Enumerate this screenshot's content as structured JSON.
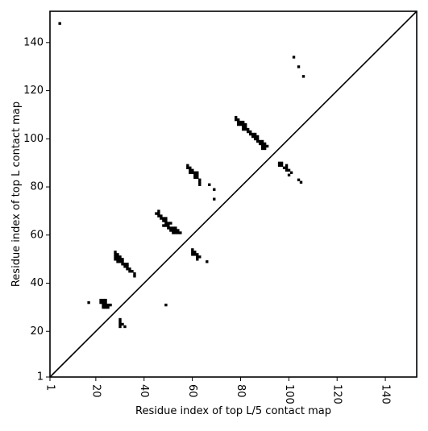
{
  "chart_data": {
    "type": "scatter",
    "title": "",
    "xlabel": "Residue index of top L/5 contact map",
    "ylabel": "Residue index of top L contact map",
    "xlim": [
      1,
      153
    ],
    "ylim": [
      1,
      153
    ],
    "xticks": [
      1,
      20,
      40,
      60,
      80,
      100,
      120,
      140
    ],
    "yticks": [
      1,
      20,
      40,
      60,
      80,
      100,
      120,
      140
    ],
    "grid": false,
    "diagonal_line": true,
    "marker": "square",
    "marker_color": "#000000",
    "upper_triangle_contacts": [
      [
        5,
        148
      ],
      [
        28,
        53
      ],
      [
        28,
        52
      ],
      [
        28,
        51
      ],
      [
        28,
        50
      ],
      [
        29,
        52
      ],
      [
        29,
        51
      ],
      [
        29,
        50
      ],
      [
        29,
        49
      ],
      [
        30,
        51
      ],
      [
        30,
        50
      ],
      [
        30,
        49
      ],
      [
        31,
        50
      ],
      [
        31,
        49
      ],
      [
        31,
        48
      ],
      [
        32,
        48
      ],
      [
        32,
        47
      ],
      [
        33,
        48
      ],
      [
        33,
        47
      ],
      [
        33,
        46
      ],
      [
        34,
        46
      ],
      [
        34,
        45
      ],
      [
        35,
        45
      ],
      [
        36,
        44
      ],
      [
        36,
        43
      ],
      [
        45,
        69
      ],
      [
        46,
        70
      ],
      [
        46,
        69
      ],
      [
        46,
        68
      ],
      [
        47,
        68
      ],
      [
        47,
        67
      ],
      [
        48,
        67
      ],
      [
        48,
        66
      ],
      [
        48,
        64
      ],
      [
        49,
        67
      ],
      [
        49,
        66
      ],
      [
        49,
        65
      ],
      [
        49,
        64
      ],
      [
        50,
        65
      ],
      [
        50,
        64
      ],
      [
        50,
        63
      ],
      [
        51,
        65
      ],
      [
        51,
        63
      ],
      [
        51,
        62
      ],
      [
        52,
        63
      ],
      [
        52,
        62
      ],
      [
        52,
        61
      ],
      [
        53,
        63
      ],
      [
        53,
        62
      ],
      [
        53,
        61
      ],
      [
        54,
        62
      ],
      [
        54,
        61
      ],
      [
        55,
        61
      ],
      [
        58,
        89
      ],
      [
        58,
        88
      ],
      [
        59,
        88
      ],
      [
        59,
        87
      ],
      [
        59,
        86
      ],
      [
        60,
        87
      ],
      [
        60,
        86
      ],
      [
        61,
        86
      ],
      [
        61,
        85
      ],
      [
        61,
        84
      ],
      [
        62,
        86
      ],
      [
        62,
        85
      ],
      [
        62,
        84
      ],
      [
        63,
        83
      ],
      [
        63,
        82
      ],
      [
        63,
        81
      ],
      [
        67,
        81
      ],
      [
        69,
        79
      ],
      [
        69,
        75
      ],
      [
        60,
        54
      ],
      [
        60,
        53
      ],
      [
        60,
        52
      ],
      [
        61,
        53
      ],
      [
        61,
        52
      ],
      [
        62,
        52
      ],
      [
        62,
        51
      ],
      [
        62,
        50
      ],
      [
        63,
        51
      ],
      [
        66,
        49
      ],
      [
        78,
        109
      ],
      [
        78,
        108
      ],
      [
        79,
        108
      ],
      [
        79,
        107
      ],
      [
        79,
        106
      ],
      [
        80,
        107
      ],
      [
        80,
        106
      ],
      [
        81,
        107
      ],
      [
        81,
        106
      ],
      [
        81,
        105
      ],
      [
        81,
        104
      ],
      [
        82,
        106
      ],
      [
        82,
        105
      ],
      [
        82,
        104
      ],
      [
        83,
        104
      ],
      [
        83,
        103
      ],
      [
        84,
        103
      ],
      [
        84,
        102
      ],
      [
        85,
        102
      ],
      [
        85,
        101
      ],
      [
        86,
        102
      ],
      [
        86,
        101
      ],
      [
        86,
        100
      ],
      [
        87,
        101
      ],
      [
        87,
        100
      ],
      [
        87,
        99
      ],
      [
        88,
        99
      ],
      [
        88,
        98
      ],
      [
        89,
        99
      ],
      [
        89,
        98
      ],
      [
        89,
        97
      ],
      [
        89,
        96
      ],
      [
        90,
        98
      ],
      [
        90,
        97
      ],
      [
        90,
        96
      ],
      [
        91,
        97
      ],
      [
        96,
        90
      ],
      [
        96,
        89
      ],
      [
        97,
        90
      ],
      [
        97,
        89
      ],
      [
        98,
        88
      ],
      [
        99,
        89
      ],
      [
        99,
        88
      ],
      [
        99,
        87
      ],
      [
        100,
        87
      ],
      [
        100,
        85
      ],
      [
        101,
        86
      ],
      [
        102,
        134
      ],
      [
        104,
        130
      ],
      [
        104,
        83
      ],
      [
        105,
        82
      ],
      [
        106,
        126
      ]
    ],
    "lower_triangle_contacts": [
      [
        17,
        32
      ],
      [
        22,
        33
      ],
      [
        22,
        32
      ],
      [
        23,
        33
      ],
      [
        23,
        32
      ],
      [
        23,
        31
      ],
      [
        23,
        30
      ],
      [
        24,
        33
      ],
      [
        24,
        32
      ],
      [
        24,
        31
      ],
      [
        24,
        30
      ],
      [
        25,
        31
      ],
      [
        25,
        30
      ],
      [
        26,
        31
      ],
      [
        30,
        25
      ],
      [
        30,
        24
      ],
      [
        30,
        23
      ],
      [
        30,
        22
      ],
      [
        31,
        23
      ],
      [
        32,
        22
      ],
      [
        49,
        31
      ]
    ]
  }
}
